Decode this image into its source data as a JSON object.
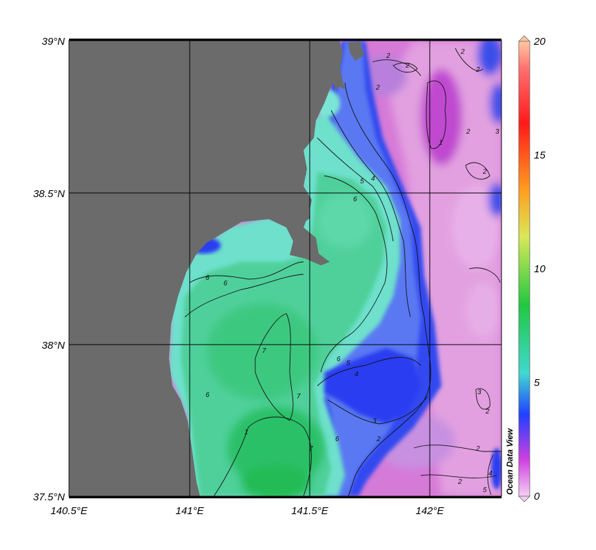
{
  "map": {
    "lat_labels": [
      "39°N",
      "38.5°N",
      "38°N",
      "37.5°N"
    ],
    "lon_labels": [
      "140.5°E",
      "141°E",
      "141.5°E",
      "142°E"
    ],
    "lat_range": [
      37.5,
      39.0
    ],
    "lon_range": [
      140.5,
      142.3
    ],
    "land_color": "#6b6b6b",
    "grid": true
  },
  "colorbar": {
    "ticks": [
      "20",
      "15",
      "10",
      "5",
      "0"
    ],
    "range": [
      0,
      20
    ],
    "colors": [
      "#ffc8a0",
      "#ff2020",
      "#ff9a20",
      "#d8e858",
      "#20c040",
      "#40d0c8",
      "#2040ff",
      "#d040e0",
      "#f0c8f0"
    ]
  },
  "contours": [
    "2",
    "2",
    "2",
    "2",
    "2",
    "1",
    "2",
    "3",
    "2",
    "4",
    "5",
    "6",
    "6",
    "6",
    "7",
    "7",
    "6",
    "1",
    "7",
    "4",
    "5",
    "6",
    "3",
    "2",
    "2",
    "2",
    "3",
    "2",
    "6",
    "4",
    "5"
  ],
  "watermark": "Ocean Data View"
}
